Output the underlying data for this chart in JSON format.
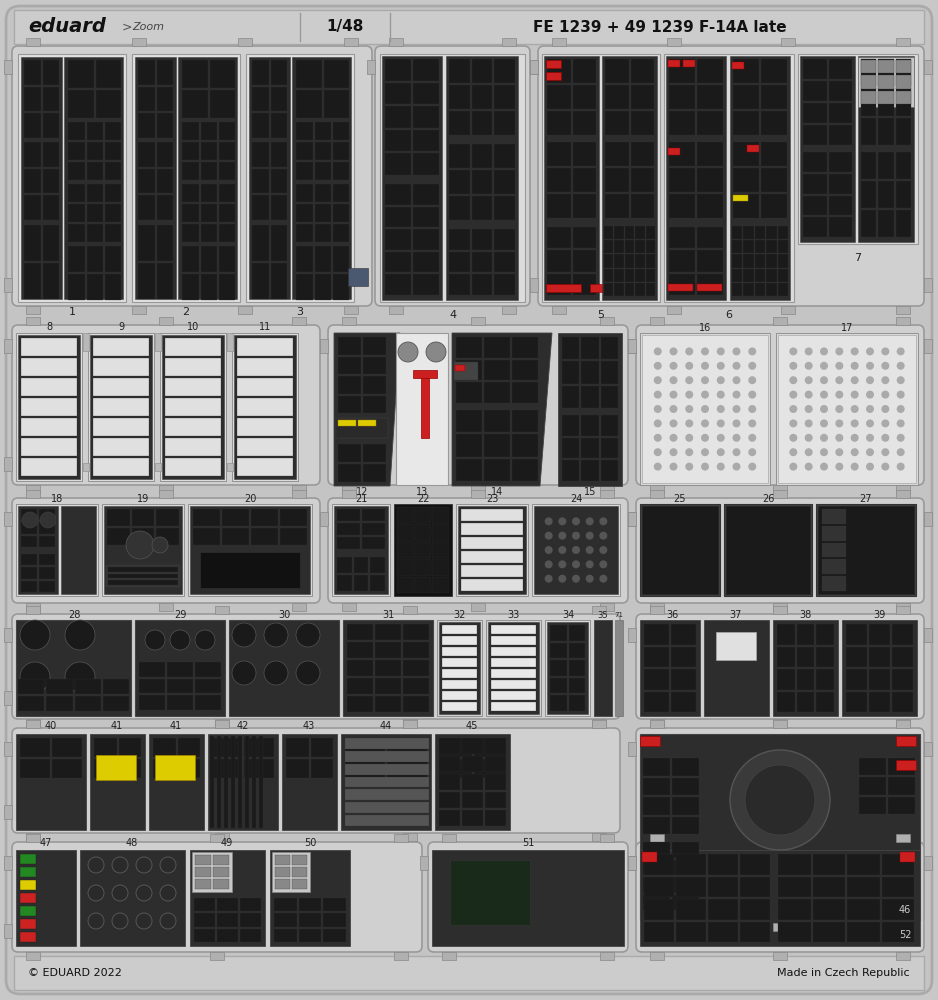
{
  "bg_color": "#c8c8c8",
  "fret_color": "#d0d0d0",
  "part_dark": "#2d2d2d",
  "part_light": "#e8e8e8",
  "part_mid": "#7a7a7a",
  "tab_color": "#b8b8b8",
  "border_dark": "#888888",
  "border_light": "#aaaaaa",
  "red": "#cc2020",
  "yellow": "#ddcc00",
  "copyright": "© EDUARD 2022",
  "made_in": "Made in Czech Republic",
  "header": "1/48   FE 1239 + 49 1239 F-14A late",
  "brand": "eduard",
  "zoom_text": "Zoom"
}
